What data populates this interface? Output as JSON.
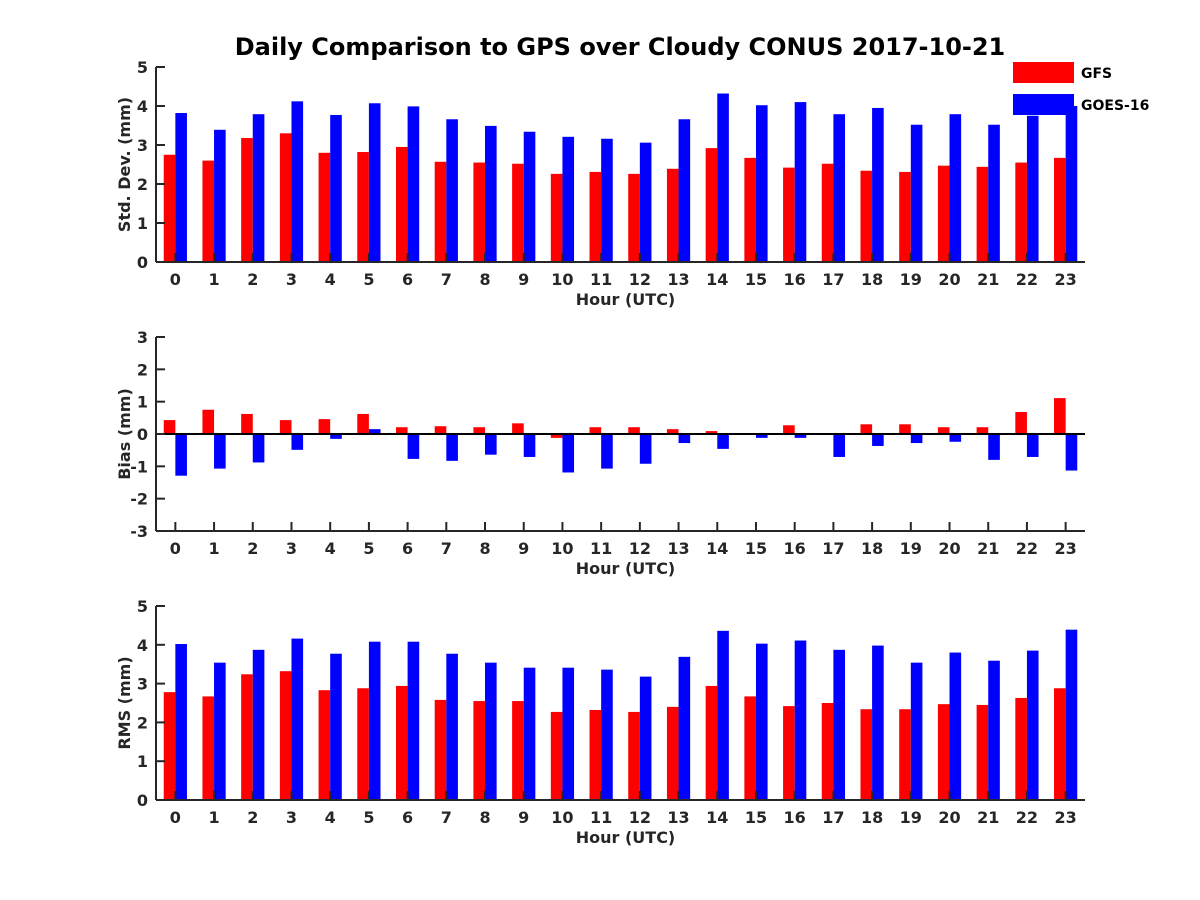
{
  "title": "Daily Comparison to GPS over Cloudy CONUS 2017-10-21",
  "colors": {
    "GFS": "#ff0000",
    "GOES-16": "#0000ff"
  },
  "legend": {
    "placement": "top-right",
    "entries": [
      "GFS",
      "GOES-16"
    ]
  },
  "chart_data": [
    {
      "type": "bar",
      "ylabel": "Std. Dev. (mm)",
      "xlabel": "Hour (UTC)",
      "ylim": [
        0,
        5
      ],
      "yticks": [
        "0",
        "1",
        "2",
        "3",
        "4",
        "5"
      ],
      "categories": [
        "0",
        "1",
        "2",
        "3",
        "4",
        "5",
        "6",
        "7",
        "8",
        "9",
        "10",
        "11",
        "12",
        "13",
        "14",
        "15",
        "16",
        "17",
        "18",
        "19",
        "20",
        "21",
        "22",
        "23"
      ],
      "series": [
        {
          "name": "GFS",
          "values": [
            2.75,
            2.6,
            3.18,
            3.3,
            2.8,
            2.82,
            2.95,
            2.57,
            2.55,
            2.52,
            2.26,
            2.31,
            2.26,
            2.39,
            2.92,
            2.67,
            2.42,
            2.52,
            2.34,
            2.31,
            2.47,
            2.44,
            2.55,
            2.67
          ]
        },
        {
          "name": "GOES-16",
          "values": [
            3.82,
            3.39,
            3.79,
            4.12,
            3.77,
            4.07,
            3.99,
            3.66,
            3.49,
            3.34,
            3.21,
            3.16,
            3.06,
            3.66,
            4.32,
            4.02,
            4.1,
            3.79,
            3.95,
            3.52,
            3.79,
            3.52,
            3.75,
            4.0
          ]
        }
      ]
    },
    {
      "type": "bar",
      "ylabel": "Bias (mm)",
      "xlabel": "Hour (UTC)",
      "ylim": [
        -3,
        3
      ],
      "yticks": [
        "-3",
        "-2",
        "-1",
        "0",
        "1",
        "2",
        "3"
      ],
      "categories": [
        "0",
        "1",
        "2",
        "3",
        "4",
        "5",
        "6",
        "7",
        "8",
        "9",
        "10",
        "11",
        "12",
        "13",
        "14",
        "15",
        "16",
        "17",
        "18",
        "19",
        "20",
        "21",
        "22",
        "23"
      ],
      "series": [
        {
          "name": "GFS",
          "values": [
            0.43,
            0.75,
            0.62,
            0.43,
            0.46,
            0.62,
            0.21,
            0.24,
            0.21,
            0.33,
            -0.12,
            0.21,
            0.21,
            0.15,
            0.09,
            0.03,
            0.27,
            0.03,
            0.3,
            0.3,
            0.21,
            0.21,
            0.68,
            1.11
          ]
        },
        {
          "name": "GOES-16",
          "values": [
            -1.29,
            -1.07,
            -0.88,
            -0.49,
            -0.15,
            0.15,
            -0.77,
            -0.83,
            -0.64,
            -0.71,
            -1.19,
            -1.07,
            -0.92,
            -0.28,
            -0.46,
            -0.12,
            -0.12,
            -0.71,
            -0.37,
            -0.28,
            -0.24,
            -0.8,
            -0.71,
            -1.13
          ]
        }
      ]
    },
    {
      "type": "bar",
      "ylabel": "RMS (mm)",
      "xlabel": "Hour (UTC)",
      "ylim": [
        0,
        5
      ],
      "yticks": [
        "0",
        "1",
        "2",
        "3",
        "4",
        "5"
      ],
      "categories": [
        "0",
        "1",
        "2",
        "3",
        "4",
        "5",
        "6",
        "7",
        "8",
        "9",
        "10",
        "11",
        "12",
        "13",
        "14",
        "15",
        "16",
        "17",
        "18",
        "19",
        "20",
        "21",
        "22",
        "23"
      ],
      "series": [
        {
          "name": "GFS",
          "values": [
            2.78,
            2.67,
            3.24,
            3.32,
            2.83,
            2.88,
            2.94,
            2.58,
            2.55,
            2.55,
            2.27,
            2.32,
            2.27,
            2.4,
            2.94,
            2.67,
            2.42,
            2.5,
            2.34,
            2.34,
            2.47,
            2.45,
            2.63,
            2.88
          ]
        },
        {
          "name": "GOES-16",
          "values": [
            4.02,
            3.54,
            3.87,
            4.16,
            3.77,
            4.08,
            4.08,
            3.77,
            3.54,
            3.41,
            3.41,
            3.36,
            3.18,
            3.69,
            4.36,
            4.03,
            4.11,
            3.87,
            3.98,
            3.54,
            3.8,
            3.59,
            3.85,
            4.39
          ]
        }
      ]
    }
  ]
}
